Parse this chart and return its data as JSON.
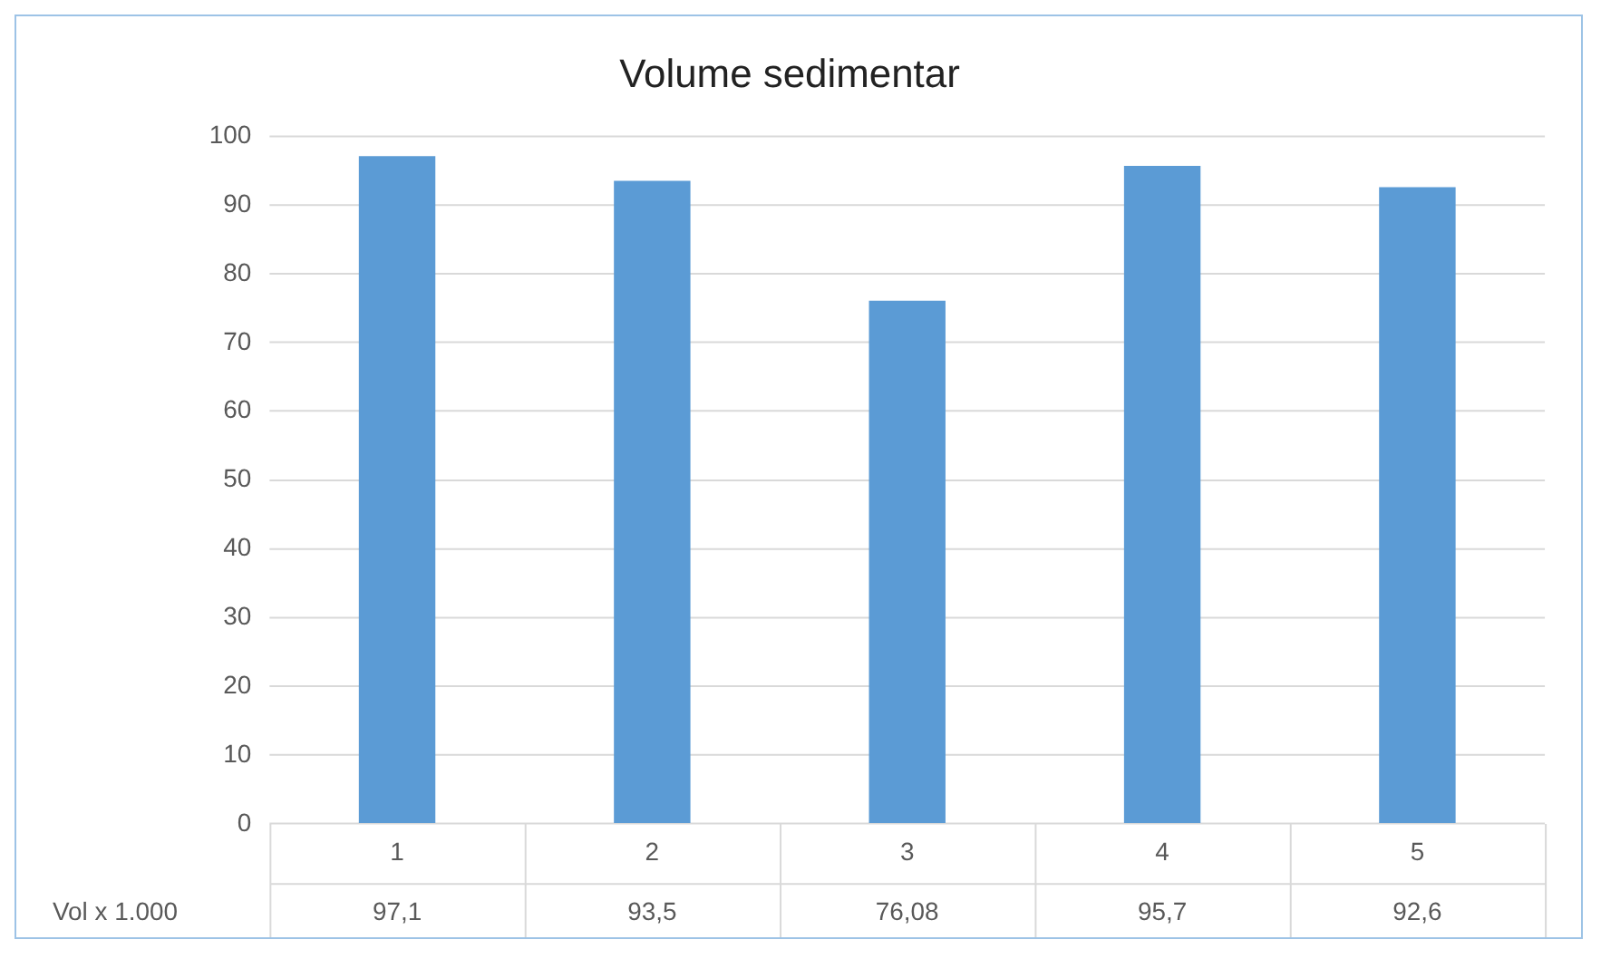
{
  "chart_data": {
    "type": "bar",
    "title": "Volume sedimentar",
    "categories": [
      "1",
      "2",
      "3",
      "4",
      "5"
    ],
    "series": [
      {
        "name": "Vol x 1.000",
        "color": "#5b9bd5",
        "values": [
          97.1,
          93.5,
          76.08,
          95.7,
          92.6
        ],
        "value_labels": [
          "97,1",
          "93,5",
          "76,08",
          "95,7",
          "92,6"
        ]
      }
    ],
    "ylim": [
      0,
      100
    ],
    "yticks": [
      0,
      10,
      20,
      30,
      40,
      50,
      60,
      70,
      80,
      90,
      100
    ],
    "grid": "y",
    "legend": false
  }
}
